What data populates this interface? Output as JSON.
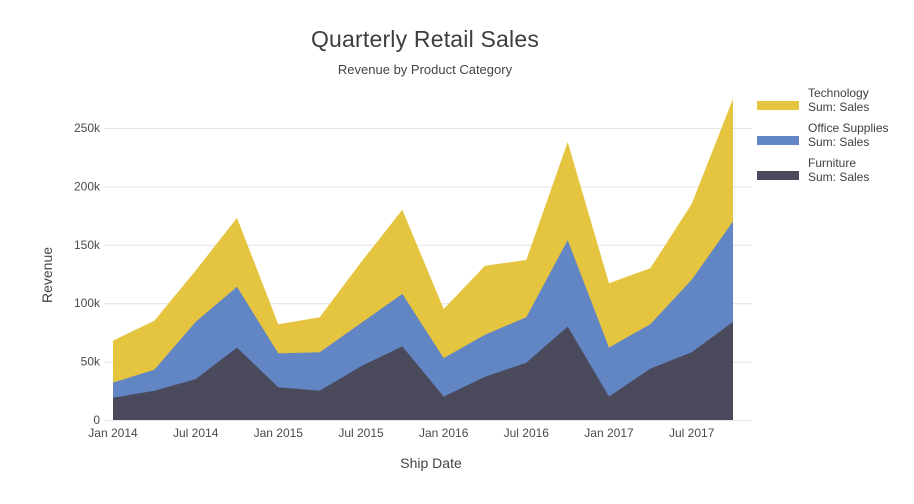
{
  "chart_data": {
    "type": "area",
    "stacked": true,
    "title": "Quarterly Retail Sales",
    "subtitle": "Revenue by Product Category",
    "xlabel": "Ship Date",
    "ylabel": "Revenue",
    "categories": [
      "Jan 2014",
      "Apr 2014",
      "Jul 2014",
      "Oct 2014",
      "Jan 2015",
      "Apr 2015",
      "Jul 2015",
      "Oct 2015",
      "Jan 2016",
      "Apr 2016",
      "Jul 2016",
      "Oct 2016",
      "Jan 2017",
      "Apr 2017",
      "Jul 2017",
      "Oct 2017"
    ],
    "x_tick_labels": [
      "Jan 2014",
      "Jul 2014",
      "Jan 2015",
      "Jul 2015",
      "Jan 2016",
      "Jul 2016",
      "Jan 2017",
      "Jul 2017"
    ],
    "y_tick_values": [
      0,
      50000,
      100000,
      150000,
      200000,
      250000
    ],
    "y_tick_labels": [
      "0",
      "50k",
      "100k",
      "150k",
      "200k",
      "250k"
    ],
    "ylim": [
      0,
      280000
    ],
    "grid": true,
    "legend_position": "right",
    "series": [
      {
        "name": "Furniture",
        "legend_sublabel": "Sum: Sales",
        "color": "#4a4a5c",
        "values": [
          19000,
          25000,
          35000,
          62000,
          28000,
          25000,
          46000,
          63000,
          20000,
          37000,
          49000,
          80000,
          20000,
          44000,
          58000,
          84000
        ]
      },
      {
        "name": "Office Supplies",
        "legend_sublabel": "Sum: Sales",
        "color": "#6285c4",
        "values": [
          13000,
          18000,
          49000,
          52000,
          29000,
          33000,
          37000,
          45000,
          33000,
          36000,
          39000,
          74000,
          42000,
          38000,
          62000,
          86000
        ]
      },
      {
        "name": "Technology",
        "legend_sublabel": "Sum: Sales",
        "color": "#e5c440",
        "values": [
          36000,
          42000,
          44000,
          59000,
          25000,
          30000,
          52000,
          72000,
          42000,
          59000,
          49000,
          84000,
          55000,
          48000,
          65000,
          105000
        ]
      }
    ]
  },
  "legend": {
    "items": [
      {
        "label": "Technology",
        "sublabel": "Sum: Sales",
        "color": "#e5c440"
      },
      {
        "label": "Office Supplies",
        "sublabel": "Sum: Sales",
        "color": "#6285c4"
      },
      {
        "label": "Furniture",
        "sublabel": "Sum: Sales",
        "color": "#4a4a5c"
      }
    ]
  },
  "style": {
    "gridline_color": "#e3e3e3",
    "tick_text_color": "#4a4a4a",
    "background": "#ffffff"
  }
}
